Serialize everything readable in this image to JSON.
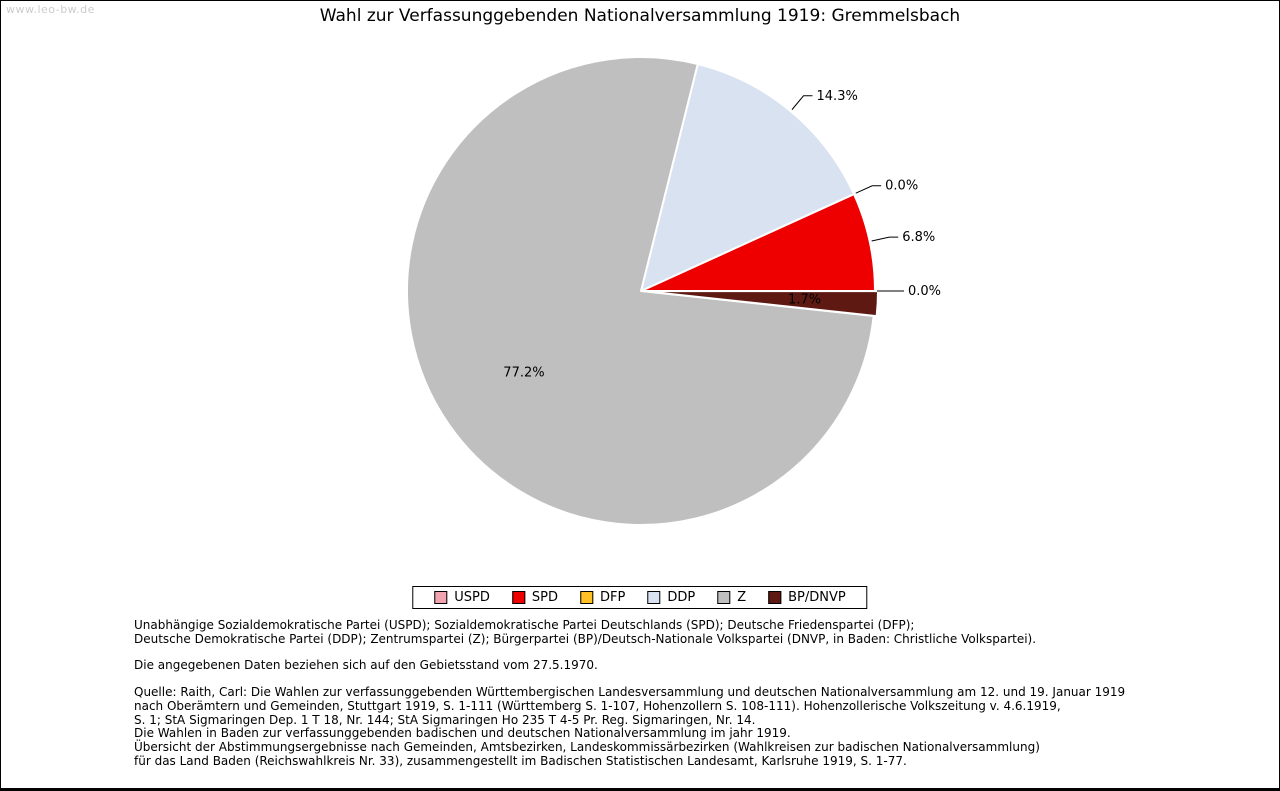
{
  "page": {
    "watermark": "www.leo-bw.de",
    "title": "Wahl zur Verfassunggebenden Nationalversammlung 1919: Gremmelsbach"
  },
  "chart_data": {
    "type": "pie",
    "title": "Wahl zur Verfassunggebenden Nationalversammlung 1919: Gremmelsbach",
    "legend_position": "bottom",
    "start_angle_deg": 0,
    "direction": "counterclockwise",
    "total_percent": 100.0,
    "slices": [
      {
        "label": "USPD",
        "value": 0.0,
        "display": "0.0%",
        "color": "#f0a4b0",
        "label_placement": "outside"
      },
      {
        "label": "SPD",
        "value": 6.8,
        "display": "6.8%",
        "color": "#ee0000",
        "label_placement": "outside"
      },
      {
        "label": "DFP",
        "value": 0.0,
        "display": "0.0%",
        "color": "#ffc125",
        "label_placement": "outside"
      },
      {
        "label": "DDP",
        "value": 14.3,
        "display": "14.3%",
        "color": "#d9e2f1",
        "label_placement": "outside"
      },
      {
        "label": "Z",
        "value": 77.2,
        "display": "77.2%",
        "color": "#bfbfbf",
        "label_placement": "inside"
      },
      {
        "label": "BP/DNVP",
        "value": 1.7,
        "display": "1.7%",
        "color": "#5e1a12",
        "label_placement": "inside-edge",
        "explode": 3
      }
    ]
  },
  "footnotes": {
    "abbreviations": [
      "Unabhängige Sozialdemokratische Partei (USPD); Sozialdemokratische Partei Deutschlands (SPD); Deutsche Friedenspartei (DFP);",
      "Deutsche Demokratische Partei (DDP); Zentrumspartei (Z); Bürgerpartei (BP)/Deutsch-Nationale Volkspartei (DNVP, in Baden: Christliche Volkspartei)."
    ],
    "data_note": "Die angegebenen Daten beziehen sich auf den Gebietsstand vom 27.5.1970.",
    "source": [
      "Quelle: Raith, Carl: Die Wahlen zur verfassunggebenden Württembergischen Landesversammlung und deutschen Nationalversammlung am 12. und 19. Januar 1919",
      "nach Oberämtern und Gemeinden, Stuttgart 1919, S. 1-111 (Württemberg S. 1-107, Hohenzollern S. 108-111). Hohenzollerische Volkszeitung v. 4.6.1919,",
      "S. 1; StA Sigmaringen Dep. 1 T 18, Nr. 144; StA Sigmaringen Ho 235 T 4-5 Pr. Reg. Sigmaringen, Nr. 14.",
      "Die Wahlen in Baden zur verfassunggebenden badischen und deutschen Nationalversammlung im jahr 1919.",
      "Übersicht der Abstimmungsergebnisse nach Gemeinden, Amtsbezirken, Landeskommissärbezirken (Wahlkreisen zur badischen Nationalversammlung)",
      "für das Land Baden (Reichswahlkreis Nr. 33), zusammengestellt im Badischen Statistischen Landesamt, Karlsruhe 1919, S. 1-77."
    ]
  }
}
